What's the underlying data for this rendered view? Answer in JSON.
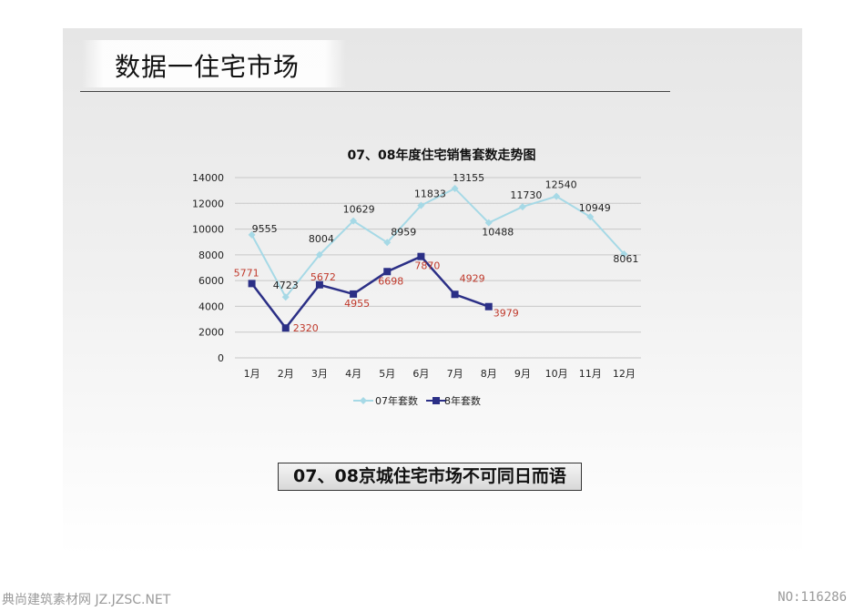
{
  "page": {
    "title": "数据一住宅市场",
    "caption": "07、08京城住宅市场不可同日而语",
    "footer_left": "典尚建筑素材网 JZ.JZSC.NET",
    "footer_right": "NO:116286"
  },
  "chart_data": {
    "type": "line",
    "title": "07、08年度住宅销售套数走势图",
    "categories": [
      "1月",
      "2月",
      "3月",
      "4月",
      "5月",
      "6月",
      "7月",
      "8月",
      "9月",
      "10月",
      "11月",
      "12月"
    ],
    "ylim": [
      0,
      14000
    ],
    "yticks": [
      0,
      2000,
      4000,
      6000,
      8000,
      10000,
      12000,
      14000
    ],
    "grid": true,
    "legend_position": "bottom",
    "series": [
      {
        "name": "07年套数",
        "color": "#a6d9e6",
        "marker": "diamond",
        "label_color": "#222222",
        "values": [
          9555,
          4723,
          8004,
          10629,
          8959,
          11833,
          13155,
          10488,
          11730,
          12540,
          10949,
          8061
        ]
      },
      {
        "name": "8年套数",
        "color": "#2b2f86",
        "marker": "square",
        "label_color": "#c0392b",
        "values": [
          5771,
          2320,
          5672,
          4955,
          6698,
          7870,
          4929,
          3979,
          null,
          null,
          null,
          null
        ]
      }
    ]
  }
}
